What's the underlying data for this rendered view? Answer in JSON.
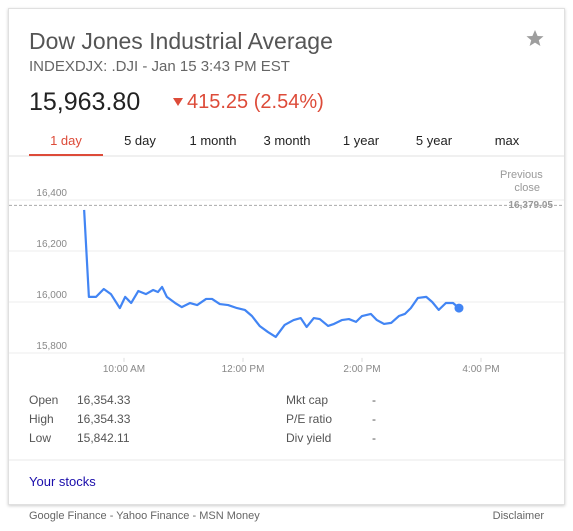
{
  "header": {
    "title": "Dow Jones Industrial Average",
    "subtitle": "INDEXDJX: .DJI - Jan 15 3:43 PM EST",
    "price": "15,963.80",
    "change": "415.25 (2.54%)"
  },
  "tabs": {
    "items": [
      "1 day",
      "5 day",
      "1 month",
      "3 month",
      "1 year",
      "5 year",
      "max"
    ],
    "selected": 0
  },
  "chart_data": {
    "type": "line",
    "color": "#4285f4",
    "grid": true,
    "x": [
      9.33,
      9.41,
      9.53,
      9.66,
      9.78,
      9.93,
      10.02,
      10.12,
      10.24,
      10.37,
      10.49,
      10.57,
      10.64,
      10.72,
      10.86,
      10.97,
      11.11,
      11.23,
      11.38,
      11.48,
      11.61,
      11.75,
      11.9,
      12.03,
      12.15,
      12.28,
      12.42,
      12.55,
      12.7,
      12.85,
      12.97,
      13.07,
      13.19,
      13.29,
      13.43,
      13.53,
      13.66,
      13.78,
      13.9,
      14.0,
      14.15,
      14.25,
      14.37,
      14.49,
      14.62,
      14.72,
      14.82,
      14.94,
      15.08,
      15.18,
      15.29,
      15.41,
      15.53,
      15.63
    ],
    "values": [
      16361,
      16020,
      16020,
      16051,
      16031,
      15976,
      16020,
      15996,
      16043,
      16031,
      16047,
      16039,
      16059,
      16020,
      15996,
      15980,
      15996,
      15988,
      16012,
      16012,
      15992,
      15988,
      15976,
      15969,
      15945,
      15906,
      15882,
      15863,
      15910,
      15929,
      15937,
      15902,
      15937,
      15933,
      15906,
      15914,
      15929,
      15933,
      15922,
      15945,
      15953,
      15929,
      15914,
      15918,
      15945,
      15953,
      15976,
      16016,
      16020,
      16000,
      15969,
      15996,
      15996,
      15976
    ],
    "xlim": [
      9,
      17
    ],
    "xticks": [
      {
        "value": 10,
        "label": "10:00 AM"
      },
      {
        "value": 12,
        "label": "12:00 PM"
      },
      {
        "value": 14,
        "label": "2:00 PM"
      },
      {
        "value": 16,
        "label": "4:00 PM"
      }
    ],
    "ylim": [
      15765,
      16535
    ],
    "yticks": [
      {
        "value": 15800,
        "label": "15,800"
      },
      {
        "value": 16000,
        "label": "16,000"
      },
      {
        "value": 16200,
        "label": "16,200"
      },
      {
        "value": 16400,
        "label": "16,400"
      }
    ],
    "previous_close": {
      "label": "Previous close",
      "value": 16379.05,
      "value_label": "16,379.05"
    }
  },
  "stats": {
    "left": [
      [
        "Open",
        "16,354.33"
      ],
      [
        "High",
        "16,354.33"
      ],
      [
        "Low",
        "15,842.11"
      ]
    ],
    "right": [
      [
        "Mkt cap",
        "-"
      ],
      [
        "P/E ratio",
        "-"
      ],
      [
        "Div yield",
        "-"
      ]
    ]
  },
  "your_stocks": "Your stocks",
  "footer": {
    "sources": "Google Finance - Yahoo Finance - MSN Money",
    "disclaimer": "Disclaimer"
  }
}
